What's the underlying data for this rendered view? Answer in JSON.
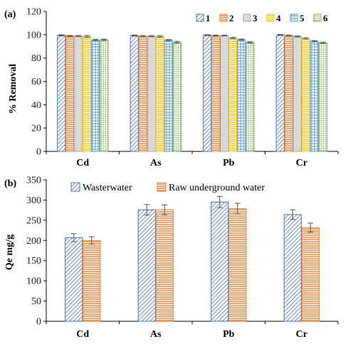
{
  "colors": {
    "s1": "#4472C4",
    "s2": "#ED7D31",
    "s3": "#A5A5A5",
    "s4": "#FFC000",
    "s5": "#5B9BD5",
    "s6": "#70AD47",
    "axis": "#000000",
    "error": "#555555"
  },
  "chart_data": [
    {
      "type": "bar",
      "panel_label": "(a)",
      "ylabel": "% Removal",
      "xlabel": "",
      "ylim": [
        0,
        120
      ],
      "yticks": [
        0,
        20,
        40,
        60,
        80,
        100,
        120
      ],
      "categories": [
        "Cd",
        "As",
        "Pb",
        "Cr"
      ],
      "legend": "top-right",
      "grid": false,
      "series": [
        {
          "name": "1",
          "values": [
            99.5,
            99.3,
            99.6,
            99.8
          ],
          "errors": [
            0.5,
            0.5,
            0.4,
            0.4
          ],
          "pattern": "diag"
        },
        {
          "name": "2",
          "values": [
            98.9,
            98.8,
            99.3,
            99.3
          ],
          "errors": [
            0.5,
            0.5,
            0.4,
            0.4
          ],
          "pattern": "hlines"
        },
        {
          "name": "3",
          "values": [
            98.8,
            98.7,
            99.3,
            98.5
          ],
          "errors": [
            0.5,
            0.5,
            0.4,
            0.5
          ],
          "pattern": "vlines"
        },
        {
          "name": "4",
          "values": [
            98.5,
            98.5,
            97.2,
            96.8
          ],
          "errors": [
            0.8,
            0.7,
            0.6,
            0.6
          ],
          "pattern": "hlines"
        },
        {
          "name": "5",
          "values": [
            95.5,
            95.3,
            95.8,
            94.4
          ],
          "errors": [
            0.6,
            0.6,
            0.5,
            0.6
          ],
          "pattern": "hatch"
        },
        {
          "name": "6",
          "values": [
            95.6,
            93.5,
            93.4,
            93.0
          ],
          "errors": [
            0.6,
            0.8,
            0.6,
            0.6
          ],
          "pattern": "dots"
        }
      ]
    },
    {
      "type": "bar",
      "panel_label": "(b)",
      "ylabel": "Qe mg/g",
      "xlabel": "",
      "ylim": [
        0,
        350
      ],
      "yticks": [
        0,
        50,
        100,
        150,
        200,
        250,
        300,
        350
      ],
      "categories": [
        "Cd",
        "As",
        "Pb",
        "Cr"
      ],
      "legend": "top-left",
      "grid": false,
      "series": [
        {
          "name": "Wasterwater",
          "values": [
            207,
            276,
            295,
            264
          ],
          "errors": [
            10,
            13,
            14,
            12
          ],
          "pattern": "diag"
        },
        {
          "name": "Raw underground water",
          "values": [
            200,
            276,
            279,
            232
          ],
          "errors": [
            9,
            12,
            13,
            11
          ],
          "pattern": "hlines"
        }
      ]
    }
  ]
}
